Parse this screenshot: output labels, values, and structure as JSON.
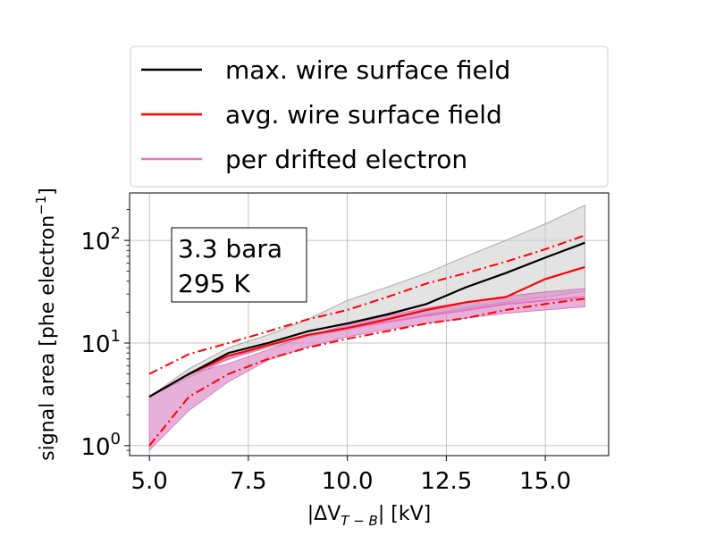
{
  "chart_data": {
    "type": "line",
    "xlabel_main": "|ΔV",
    "xlabel_sub": "T − B",
    "xlabel_tail": "| [kV]",
    "ylabel_main": "signal area [phe electron",
    "ylabel_sup": "−1",
    "ylabel_tail": "]",
    "xlim": [
      4.5,
      16.6
    ],
    "ylim": [
      0.8,
      290
    ],
    "y_scale": "log",
    "grid": true,
    "x_ticks": [
      5.0,
      7.5,
      10.0,
      12.5,
      15.0
    ],
    "x_tick_labels": [
      "5.0",
      "7.5",
      "10.0",
      "12.5",
      "15.0"
    ],
    "y_ticks": [
      1,
      10,
      100
    ],
    "y_tick_labels": [
      {
        "base": "10",
        "exp": "0"
      },
      {
        "base": "10",
        "exp": "1"
      },
      {
        "base": "10",
        "exp": "2"
      }
    ],
    "legend_position": "above plot",
    "legend": [
      {
        "label": "max. wire surface field",
        "color": "#000000"
      },
      {
        "label": "avg. wire surface field",
        "color": "#ff0000"
      },
      {
        "label": "per drifted electron",
        "color": "#e377c2"
      }
    ],
    "annotation": [
      "3.3 bara",
      "295 K"
    ],
    "x": [
      5,
      6,
      7,
      8,
      9,
      10,
      11,
      12,
      13,
      14,
      15,
      16
    ],
    "series": [
      {
        "name": "max. wire surface field",
        "color": "#000000",
        "values": [
          3.0,
          5.0,
          8.0,
          10.0,
          13.0,
          15.5,
          19.0,
          24.0,
          35.0,
          48.0,
          68.0,
          95.0
        ],
        "band_low": [
          3.0,
          4.6,
          7.0,
          9.0,
          11.5,
          13.5,
          16.0,
          19.0,
          22.0,
          25.0,
          28.0,
          32.0
        ],
        "band_high": [
          3.0,
          5.6,
          9.0,
          12.0,
          17.0,
          26.0,
          35.0,
          48.0,
          70.0,
          100.0,
          145.0,
          220.0
        ],
        "band_color": "#cccccc"
      },
      {
        "name": "avg. wire surface field",
        "color": "#ff0000",
        "values": [
          3.0,
          5.0,
          7.5,
          9.5,
          12.0,
          14.0,
          17.0,
          21.0,
          25.0,
          28.0,
          42.0,
          55.0
        ],
        "dash_high": [
          5.0,
          7.8,
          10.0,
          13.0,
          17.0,
          21.0,
          28.0,
          38.0,
          48.0,
          62.0,
          82.0,
          112.0
        ],
        "dash_low": [
          1.0,
          3.0,
          5.0,
          7.0,
          9.0,
          11.0,
          13.0,
          15.5,
          17.5,
          21.0,
          24.0,
          27.0
        ]
      },
      {
        "name": "per drifted electron",
        "color": "#e377c2",
        "values": [
          3.0,
          5.0,
          7.0,
          9.5,
          12.0,
          14.0,
          16.0,
          18.5,
          21.0,
          24.0,
          26.0,
          28.0
        ],
        "band_low": [
          0.9,
          2.2,
          4.2,
          6.8,
          9.2,
          11.5,
          13.5,
          15.5,
          17.5,
          19.5,
          21.0,
          22.5
        ],
        "band_high": [
          3.0,
          5.0,
          6.3,
          8.6,
          11.8,
          15.0,
          18.5,
          22.0,
          25.0,
          28.5,
          31.5,
          34.0
        ],
        "band_color": "#d985c4"
      }
    ]
  }
}
